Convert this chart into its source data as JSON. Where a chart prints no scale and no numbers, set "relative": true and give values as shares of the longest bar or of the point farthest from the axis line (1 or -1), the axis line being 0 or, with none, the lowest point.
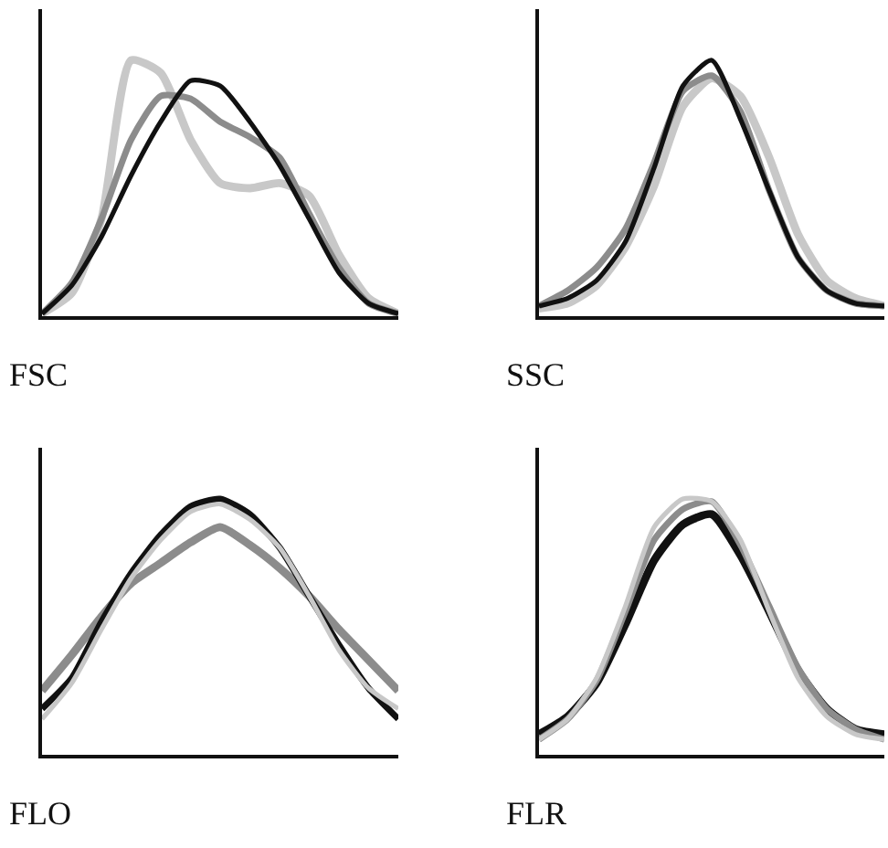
{
  "chart_data": [
    {
      "type": "line",
      "xlabel": "FSC",
      "relative": true,
      "categories": [
        null,
        null,
        null,
        null,
        null,
        null,
        null,
        null,
        null,
        null,
        null,
        null,
        null
      ],
      "series": [
        {
          "color": "#c8c8c8",
          "values": [
            0.01,
            0.09,
            0.38,
            1.0,
            0.95,
            0.69,
            0.52,
            0.5,
            0.52,
            0.47,
            0.24,
            0.07,
            0.01
          ]
        },
        {
          "color": "#8c8c8c",
          "values": [
            0.01,
            0.13,
            0.38,
            0.69,
            0.86,
            0.85,
            0.76,
            0.7,
            0.62,
            0.4,
            0.19,
            0.05,
            0.01
          ]
        },
        {
          "color": "#111111",
          "values": [
            0.01,
            0.12,
            0.31,
            0.55,
            0.76,
            0.92,
            0.9,
            0.76,
            0.59,
            0.38,
            0.17,
            0.05,
            0.01
          ]
        }
      ]
    },
    {
      "type": "line",
      "xlabel": "SSC",
      "relative": true,
      "categories": [
        null,
        null,
        null,
        null,
        null,
        null,
        null,
        null,
        null,
        null,
        null,
        null,
        null
      ],
      "series": [
        {
          "color": "#c8c8c8",
          "values": [
            0.03,
            0.05,
            0.12,
            0.27,
            0.51,
            0.82,
            0.93,
            0.86,
            0.62,
            0.32,
            0.14,
            0.07,
            0.04
          ]
        },
        {
          "color": "#8c8c8c",
          "values": [
            0.04,
            0.1,
            0.19,
            0.34,
            0.6,
            0.88,
            0.94,
            0.8,
            0.49,
            0.23,
            0.1,
            0.05,
            0.04
          ]
        },
        {
          "color": "#111111",
          "values": [
            0.04,
            0.07,
            0.14,
            0.29,
            0.58,
            0.9,
            1.0,
            0.77,
            0.49,
            0.23,
            0.1,
            0.05,
            0.04
          ]
        }
      ]
    },
    {
      "type": "line",
      "xlabel": "FLO",
      "relative": true,
      "categories": [
        null,
        null,
        null,
        null,
        null,
        null,
        null,
        null,
        null,
        null,
        null,
        null,
        null
      ],
      "series": [
        {
          "color": "#8c8c8c",
          "values": [
            0.25,
            0.39,
            0.54,
            0.67,
            0.75,
            0.83,
            0.89,
            0.82,
            0.73,
            0.62,
            0.49,
            0.37,
            0.25
          ]
        },
        {
          "color": "#111111",
          "values": [
            0.18,
            0.3,
            0.52,
            0.71,
            0.86,
            0.97,
            1.0,
            0.94,
            0.81,
            0.62,
            0.43,
            0.26,
            0.14
          ]
        },
        {
          "color": "#c8c8c8",
          "values": [
            0.14,
            0.28,
            0.49,
            0.69,
            0.84,
            0.95,
            0.98,
            0.92,
            0.81,
            0.62,
            0.41,
            0.26,
            0.18
          ]
        }
      ]
    },
    {
      "type": "line",
      "xlabel": "FLR",
      "relative": true,
      "categories": [
        null,
        null,
        null,
        null,
        null,
        null,
        null,
        null,
        null,
        null,
        null,
        null,
        null
      ],
      "series": [
        {
          "color": "#111111",
          "values": [
            0.08,
            0.15,
            0.28,
            0.51,
            0.76,
            0.9,
            0.94,
            0.78,
            0.56,
            0.33,
            0.18,
            0.1,
            0.08
          ]
        },
        {
          "color": "#8c8c8c",
          "values": [
            0.06,
            0.14,
            0.29,
            0.56,
            0.84,
            0.96,
            0.99,
            0.82,
            0.58,
            0.34,
            0.18,
            0.1,
            0.06
          ]
        },
        {
          "color": "#c8c8c8",
          "values": [
            0.06,
            0.14,
            0.3,
            0.58,
            0.89,
            1.0,
            0.99,
            0.84,
            0.56,
            0.3,
            0.15,
            0.08,
            0.06
          ]
        }
      ]
    }
  ]
}
